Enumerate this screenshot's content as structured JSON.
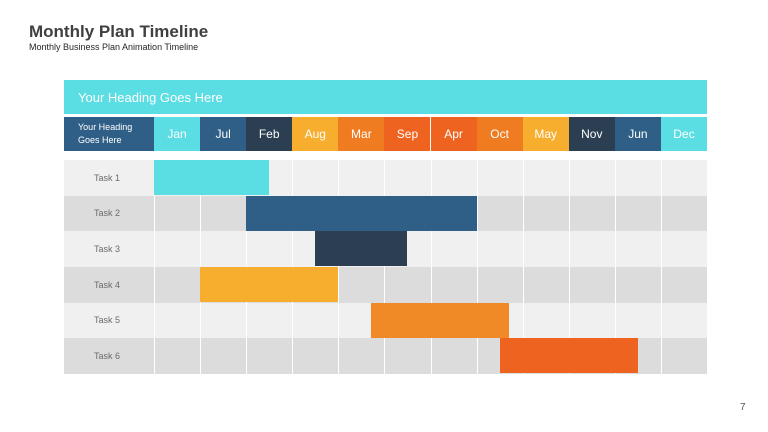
{
  "header": {
    "title": "Monthly Plan Timeline",
    "subtitle": "Monthly Business Plan Animation Timeline"
  },
  "timeline": {
    "heading": "Your Heading Goes Here",
    "corner_label_line1": "Your Heading",
    "corner_label_line2": "Goes Here",
    "months": [
      {
        "label": "Jan",
        "color": "#5ADDE3"
      },
      {
        "label": "Jul",
        "color": "#2F5F86"
      },
      {
        "label": "Feb",
        "color": "#2B3E52"
      },
      {
        "label": "Aug",
        "color": "#F7AE2F"
      },
      {
        "label": "Mar",
        "color": "#F07C22"
      },
      {
        "label": "Sep",
        "color": "#EF6320"
      },
      {
        "label": "Apr",
        "color": "#EF6320"
      },
      {
        "label": "Oct",
        "color": "#F07C22"
      },
      {
        "label": "May",
        "color": "#F7AE2F"
      },
      {
        "label": "Nov",
        "color": "#2B3E52"
      },
      {
        "label": "Jun",
        "color": "#2F5F86"
      },
      {
        "label": "Dec",
        "color": "#5ADDE3"
      }
    ],
    "tasks": [
      {
        "label": "Task 1",
        "start": 0,
        "span": 2.5,
        "color": "#5ADDE3"
      },
      {
        "label": "Task 2",
        "start": 2,
        "span": 5,
        "color": "#2F5F86"
      },
      {
        "label": "Task 3",
        "start": 3.5,
        "span": 2,
        "color": "#2B3E52"
      },
      {
        "label": "Task 4",
        "start": 1,
        "span": 3,
        "color": "#F7AE2F"
      },
      {
        "label": "Task 5",
        "start": 4.7,
        "span": 3,
        "color": "#F08A26"
      },
      {
        "label": "Task 6",
        "start": 7.5,
        "span": 3,
        "color": "#EF6320"
      }
    ],
    "row_colors": [
      "#F0F0F0",
      "#DCDCDC"
    ]
  },
  "footer": {
    "page_number": "7"
  }
}
